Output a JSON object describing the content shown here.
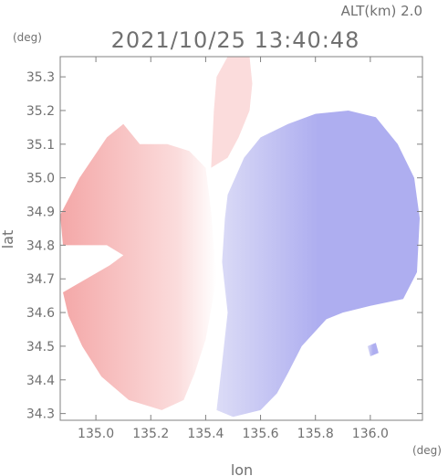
{
  "chart_data": {
    "type": "heatmap",
    "title": "2021/10/25 13:40:48",
    "altitude_label": "ALT(km) 2.0",
    "xlabel": "lon",
    "ylabel": "lat",
    "x_unit": "(deg)",
    "y_unit": "(deg)",
    "xlim": [
      134.87,
      136.19
    ],
    "ylim": [
      34.28,
      35.36
    ],
    "x_ticks": [
      135.0,
      135.2,
      135.4,
      135.6,
      135.8,
      136.0
    ],
    "x_tick_labels": [
      "135.0",
      "135.2",
      "135.4",
      "135.6",
      "135.8",
      "136.0"
    ],
    "y_ticks": [
      34.3,
      34.4,
      34.5,
      34.6,
      34.7,
      34.8,
      34.9,
      35.0,
      35.1,
      35.2,
      35.3
    ],
    "y_tick_labels": [
      "34.3",
      "34.4",
      "34.5",
      "34.6",
      "34.7",
      "34.8",
      "34.9",
      "35.0",
      "35.1",
      "35.2",
      "35.3"
    ],
    "grid": false,
    "colors": {
      "positive": "#f4a7a7",
      "positive_light": "#fbdcdc",
      "neutral": "#ffffff",
      "negative_light": "#dcdcf6",
      "negative": "#aeaef0",
      "axis": "#808080",
      "text": "#6e6e6e"
    },
    "regions": [
      {
        "name": "west-positive",
        "sign": "positive",
        "polygon": [
          [
            134.87,
            34.89
          ],
          [
            134.94,
            35.0
          ],
          [
            134.99,
            35.06
          ],
          [
            135.04,
            35.12
          ],
          [
            135.1,
            35.16
          ],
          [
            135.16,
            35.1
          ],
          [
            135.26,
            35.1
          ],
          [
            135.34,
            35.08
          ],
          [
            135.4,
            35.03
          ],
          [
            135.42,
            34.9
          ],
          [
            135.44,
            34.7
          ],
          [
            135.4,
            34.52
          ],
          [
            135.36,
            34.42
          ],
          [
            135.32,
            34.34
          ],
          [
            135.24,
            34.31
          ],
          [
            135.12,
            34.34
          ],
          [
            135.02,
            34.41
          ],
          [
            134.95,
            34.5
          ],
          [
            134.9,
            34.59
          ],
          [
            134.88,
            34.66
          ],
          [
            135.05,
            34.74
          ],
          [
            135.1,
            34.77
          ],
          [
            135.04,
            34.8
          ],
          [
            134.88,
            34.8
          ]
        ]
      },
      {
        "name": "north-positive",
        "sign": "positive_light",
        "polygon": [
          [
            135.42,
            35.03
          ],
          [
            135.43,
            35.2
          ],
          [
            135.44,
            35.3
          ],
          [
            135.48,
            35.36
          ],
          [
            135.56,
            35.36
          ],
          [
            135.57,
            35.28
          ],
          [
            135.56,
            35.2
          ],
          [
            135.52,
            35.12
          ],
          [
            135.48,
            35.06
          ]
        ]
      },
      {
        "name": "east-negative",
        "sign": "negative",
        "polygon": [
          [
            135.48,
            34.95
          ],
          [
            135.54,
            35.06
          ],
          [
            135.6,
            35.12
          ],
          [
            135.7,
            35.16
          ],
          [
            135.8,
            35.19
          ],
          [
            135.92,
            35.2
          ],
          [
            136.02,
            35.18
          ],
          [
            136.1,
            35.1
          ],
          [
            136.16,
            35.0
          ],
          [
            136.18,
            34.88
          ],
          [
            136.17,
            34.72
          ],
          [
            136.12,
            34.64
          ],
          [
            136.0,
            34.62
          ],
          [
            135.9,
            34.6
          ],
          [
            135.84,
            34.58
          ],
          [
            135.75,
            34.5
          ],
          [
            135.7,
            34.42
          ],
          [
            135.66,
            34.36
          ],
          [
            135.6,
            34.31
          ],
          [
            135.5,
            34.29
          ],
          [
            135.44,
            34.31
          ],
          [
            135.46,
            34.45
          ],
          [
            135.48,
            34.6
          ],
          [
            135.46,
            34.75
          ],
          [
            135.47,
            34.88
          ]
        ]
      },
      {
        "name": "east-island",
        "sign": "negative",
        "polygon": [
          [
            135.99,
            34.5
          ],
          [
            136.02,
            34.51
          ],
          [
            136.03,
            34.48
          ],
          [
            136.0,
            34.47
          ]
        ]
      }
    ]
  }
}
